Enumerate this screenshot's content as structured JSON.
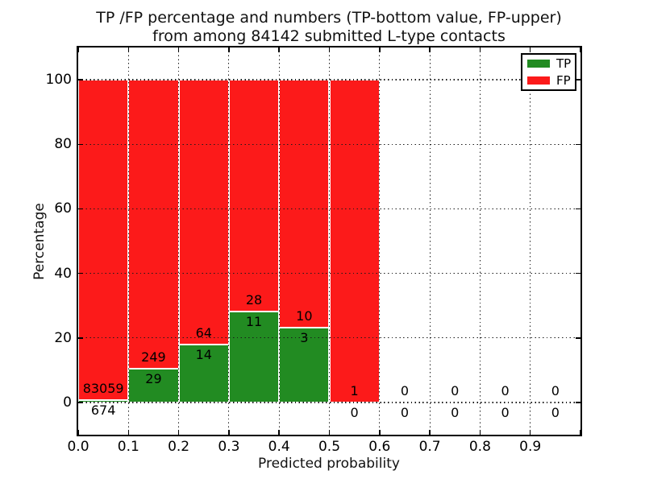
{
  "title": {
    "line1": "TP /FP percentage and numbers (TP-bottom value, FP-upper)",
    "line2": "from among 84142 submitted L-type contacts"
  },
  "chart_data": {
    "type": "bar",
    "stacked": true,
    "title": "TP /FP percentage and numbers (TP-bottom value, FP-upper) from among 84142 submitted L-type contacts",
    "total_contacts": 84142,
    "xlabel": "Predicted probability",
    "ylabel": "Percentage",
    "xlim": [
      0.0,
      1.0
    ],
    "ylim": [
      -10,
      110
    ],
    "bin_width": 0.1,
    "bin_starts": [
      0.0,
      0.1,
      0.2,
      0.3,
      0.4,
      0.5,
      0.6,
      0.7,
      0.8,
      0.9
    ],
    "x_tick_labels": [
      "0.0",
      "0.1",
      "0.2",
      "0.3",
      "0.4",
      "0.5",
      "0.6",
      "0.7",
      "0.8",
      "0.9"
    ],
    "y_tick_values": [
      0,
      20,
      40,
      60,
      80,
      100
    ],
    "grid": "dotted black, both axes",
    "legend_position": "upper right",
    "bar_total_height_percent": 100,
    "series": [
      {
        "name": "TP",
        "color": "#228b22",
        "counts": [
          674,
          29,
          14,
          11,
          3,
          0,
          0,
          0,
          0,
          0
        ]
      },
      {
        "name": "FP",
        "color": "#fc1a1a",
        "counts": [
          83059,
          249,
          64,
          28,
          10,
          1,
          0,
          0,
          0,
          0
        ]
      }
    ],
    "tp_percent_of_bin": [
      0.81,
      10.43,
      17.95,
      28.21,
      23.08,
      0.0,
      0,
      0,
      0,
      0
    ],
    "annotation_note": "TP count printed below boundary, FP count printed above boundary"
  }
}
